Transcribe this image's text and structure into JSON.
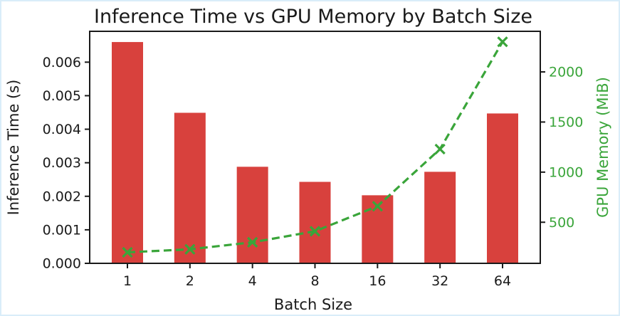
{
  "figure": {
    "background": "#ffffff",
    "frame_color": "#d9edf9"
  },
  "chart_data": {
    "type": "bar+line",
    "title": "Inference Time vs GPU Memory by Batch Size",
    "xlabel": "Batch Size",
    "categories": [
      "1",
      "2",
      "4",
      "8",
      "16",
      "32",
      "64"
    ],
    "series": [
      {
        "name": "Inference Time (s)",
        "type": "bar",
        "axis": "left",
        "color": "#d8413d",
        "values": [
          0.0066,
          0.00449,
          0.00288,
          0.00243,
          0.00203,
          0.00273,
          0.00447
        ]
      },
      {
        "name": "GPU Memory (MiB)",
        "type": "line",
        "axis": "right",
        "color": "#3aa53a",
        "line_style": "dashed",
        "marker": "x",
        "values": [
          200,
          230,
          300,
          410,
          660,
          1230,
          2300
        ]
      }
    ],
    "left_axis": {
      "label": "Inference Time (s)",
      "color": "#1a1a1a",
      "tick_values": [
        0,
        0.001,
        0.002,
        0.003,
        0.004,
        0.005,
        0.006
      ],
      "tick_labels": [
        "0.000",
        "0.001",
        "0.002",
        "0.003",
        "0.004",
        "0.005",
        "0.006"
      ],
      "range": [
        0,
        0.00692
      ]
    },
    "right_axis": {
      "label": "GPU Memory (MiB)",
      "color": "#3aa53a",
      "tick_values": [
        500,
        1000,
        1500,
        2000
      ],
      "tick_labels": [
        "500",
        "1000",
        "1500",
        "2000"
      ],
      "range": [
        90,
        2405
      ]
    },
    "grid": false,
    "legend": "none"
  }
}
